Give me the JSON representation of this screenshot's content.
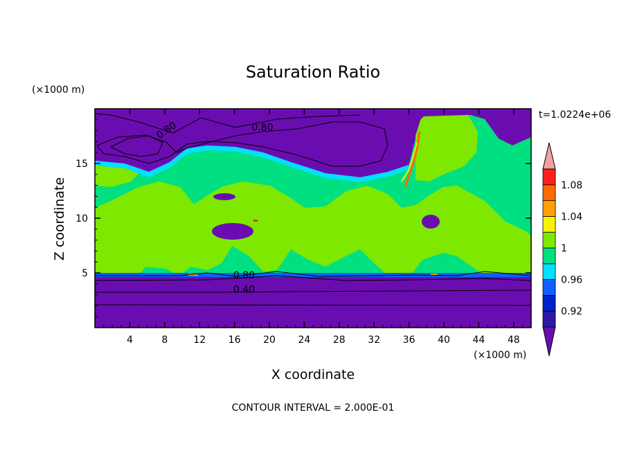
{
  "chart_data": {
    "type": "heatmap",
    "title": "Saturation Ratio",
    "xlabel": "X coordinate",
    "ylabel": "Z coordinate",
    "x_unit": "(×1000 m)",
    "y_unit": "(×1000 m)",
    "time_label": "t=1.0224e+06",
    "footer": "CONTOUR INTERVAL = 2.000E-01",
    "xlim": [
      0,
      50
    ],
    "ylim": [
      0,
      20
    ],
    "x_ticks": [
      "4",
      "8",
      "12",
      "16",
      "20",
      "24",
      "28",
      "32",
      "36",
      "40",
      "44",
      "48"
    ],
    "x_tick_values": [
      4,
      8,
      12,
      16,
      20,
      24,
      28,
      32,
      36,
      40,
      44,
      48
    ],
    "y_ticks": [
      "5",
      "10",
      "15"
    ],
    "y_tick_values": [
      5,
      10,
      15
    ],
    "colorbar": {
      "levels": [
        0.9,
        0.92,
        0.94,
        0.96,
        0.98,
        1.0,
        1.02,
        1.04,
        1.06,
        1.08,
        1.1
      ],
      "labels": [
        "0.92",
        "0.96",
        "1",
        "1.04",
        "1.08"
      ],
      "label_values": [
        0.92,
        0.96,
        1.0,
        1.04,
        1.08
      ],
      "colors": [
        "#6a0db0",
        "#2a1aa5",
        "#0022c8",
        "#1060ff",
        "#00e0ff",
        "#00e080",
        "#7fe800",
        "#f8f400",
        "#ffa000",
        "#ff6a00",
        "#ff2020",
        "#f4a0a0"
      ],
      "extend": "both"
    },
    "contour_labels": [
      {
        "text": "0.80",
        "x": 8.4,
        "y": 17.8,
        "angle": -35
      },
      {
        "text": "0.80",
        "x": 19.2,
        "y": 18.0,
        "angle": 0
      },
      {
        "text": "0.80",
        "x": 17.1,
        "y": 4.5,
        "angle": 0
      },
      {
        "text": "0.40",
        "x": 17.1,
        "y": 3.2,
        "angle": 0
      }
    ]
  }
}
